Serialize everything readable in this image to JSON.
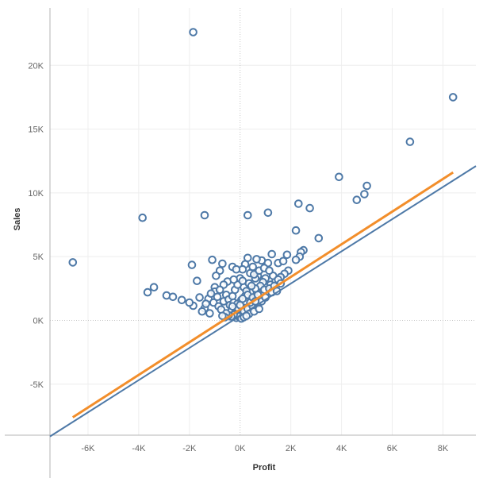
{
  "chart_data": {
    "type": "scatter",
    "title": "",
    "xlabel": "Profit",
    "ylabel": "Sales",
    "xlim": [
      -7500,
      9300
    ],
    "ylim": [
      -9000,
      24500
    ],
    "x_ticks": [
      -6000,
      -4000,
      -2000,
      0,
      2000,
      4000,
      6000,
      8000
    ],
    "x_tick_labels": [
      "-6K",
      "-4K",
      "-2K",
      "0K",
      "2K",
      "4K",
      "6K",
      "8K"
    ],
    "y_ticks": [
      -5000,
      0,
      5000,
      10000,
      15000,
      20000
    ],
    "y_tick_labels": [
      "-5K",
      "0K",
      "5K",
      "10K",
      "15K",
      "20K"
    ],
    "grid": true,
    "marker": "hollow-circle",
    "colors": {
      "points": "#4e79a7",
      "reference_line": "#4e79a7",
      "trend_line": "#f28e2b",
      "grid": "#eeeeee",
      "zero_line": "#c8c8c8",
      "axis": "#b4b4b4"
    },
    "reference_line": {
      "x": [
        -7500,
        9300
      ],
      "y": [
        -9100,
        12100
      ]
    },
    "trend_line": {
      "x": [
        -6600,
        8400
      ],
      "y": [
        -7600,
        11600
      ]
    },
    "points": [
      [
        -1850,
        22600
      ],
      [
        8400,
        17500
      ],
      [
        6700,
        14000
      ],
      [
        3900,
        11250
      ],
      [
        5000,
        10550
      ],
      [
        4900,
        9900
      ],
      [
        4600,
        9450
      ],
      [
        2300,
        9150
      ],
      [
        2750,
        8800
      ],
      [
        1100,
        8450
      ],
      [
        300,
        8250
      ],
      [
        -1400,
        8250
      ],
      [
        -3850,
        8050
      ],
      [
        2200,
        7050
      ],
      [
        3100,
        6450
      ],
      [
        -6600,
        4550
      ],
      [
        2500,
        5500
      ],
      [
        2400,
        5350
      ],
      [
        2350,
        5000
      ],
      [
        2200,
        4750
      ],
      [
        1850,
        5150
      ],
      [
        1250,
        5200
      ],
      [
        1500,
        4500
      ],
      [
        1700,
        4650
      ],
      [
        1100,
        4500
      ],
      [
        850,
        4700
      ],
      [
        650,
        4800
      ],
      [
        300,
        4900
      ],
      [
        200,
        4400
      ],
      [
        100,
        4000
      ],
      [
        500,
        4200
      ],
      [
        400,
        3700
      ],
      [
        700,
        3500
      ],
      [
        1000,
        3300
      ],
      [
        1400,
        3100
      ],
      [
        1900,
        3900
      ],
      [
        1750,
        3650
      ],
      [
        1600,
        3400
      ],
      [
        1300,
        3500
      ],
      [
        900,
        3000
      ],
      [
        1200,
        2800
      ],
      [
        1500,
        3200
      ],
      [
        800,
        2700
      ],
      [
        600,
        3300
      ],
      [
        -300,
        4200
      ],
      [
        -150,
        4000
      ],
      [
        -700,
        4450
      ],
      [
        -1100,
        4750
      ],
      [
        -1900,
        4350
      ],
      [
        -1700,
        3100
      ],
      [
        -800,
        3900
      ],
      [
        -950,
        3500
      ],
      [
        -500,
        3050
      ],
      [
        -3400,
        2600
      ],
      [
        -3650,
        2200
      ],
      [
        -2900,
        1950
      ],
      [
        -2650,
        1850
      ],
      [
        -2300,
        1600
      ],
      [
        -1850,
        1150
      ],
      [
        -1400,
        950
      ],
      [
        -1250,
        1700
      ],
      [
        -1050,
        1400
      ],
      [
        -1000,
        2600
      ],
      [
        -1000,
        2250
      ],
      [
        -900,
        1850
      ],
      [
        -850,
        1100
      ],
      [
        -750,
        850
      ],
      [
        -650,
        1500
      ],
      [
        -550,
        2000
      ],
      [
        -450,
        1650
      ],
      [
        -400,
        1200
      ],
      [
        -350,
        700
      ],
      [
        -300,
        1900
      ],
      [
        -250,
        1400
      ],
      [
        -200,
        950
      ],
      [
        -150,
        600
      ],
      [
        -100,
        1300
      ],
      [
        -50,
        800
      ],
      [
        0,
        400
      ],
      [
        50,
        1600
      ],
      [
        100,
        1100
      ],
      [
        150,
        700
      ],
      [
        200,
        1900
      ],
      [
        250,
        1300
      ],
      [
        300,
        900
      ],
      [
        350,
        500
      ],
      [
        400,
        2200
      ],
      [
        450,
        1600
      ],
      [
        500,
        1100
      ],
      [
        550,
        700
      ],
      [
        600,
        2500
      ],
      [
        650,
        1800
      ],
      [
        700,
        1300
      ],
      [
        750,
        900
      ],
      [
        800,
        2100
      ],
      [
        850,
        1500
      ],
      [
        950,
        2400
      ],
      [
        1000,
        1800
      ],
      [
        150,
        2600
      ],
      [
        250,
        2300
      ],
      [
        350,
        2900
      ],
      [
        450,
        2700
      ],
      [
        -200,
        2400
      ],
      [
        -100,
        2800
      ],
      [
        0,
        3300
      ],
      [
        100,
        3100
      ],
      [
        -250,
        3200
      ],
      [
        -150,
        200
      ],
      [
        -50,
        300
      ],
      [
        50,
        150
      ],
      [
        150,
        250
      ],
      [
        250,
        350
      ],
      [
        -250,
        450
      ],
      [
        -350,
        300
      ],
      [
        -450,
        400
      ],
      [
        -550,
        550
      ],
      [
        -600,
        250
      ],
      [
        1150,
        2500
      ],
      [
        1250,
        2200
      ],
      [
        1350,
        2700
      ],
      [
        1450,
        2300
      ],
      [
        1600,
        2900
      ],
      [
        550,
        3600
      ],
      [
        750,
        3900
      ],
      [
        950,
        4100
      ],
      [
        1150,
        3900
      ],
      [
        -650,
        2800
      ],
      [
        -800,
        2400
      ],
      [
        -1150,
        2100
      ],
      [
        -1350,
        1300
      ],
      [
        -1500,
        700
      ],
      [
        -1600,
        1800
      ],
      [
        -2000,
        1400
      ],
      [
        -1200,
        550
      ],
      [
        -700,
        350
      ],
      [
        200,
        1500
      ],
      [
        300,
        2000
      ],
      [
        400,
        1400
      ],
      [
        500,
        1800
      ],
      [
        600,
        1500
      ],
      [
        700,
        2000
      ],
      [
        -100,
        1000
      ],
      [
        0,
        1200
      ],
      [
        100,
        1700
      ],
      [
        -300,
        1100
      ]
    ]
  }
}
